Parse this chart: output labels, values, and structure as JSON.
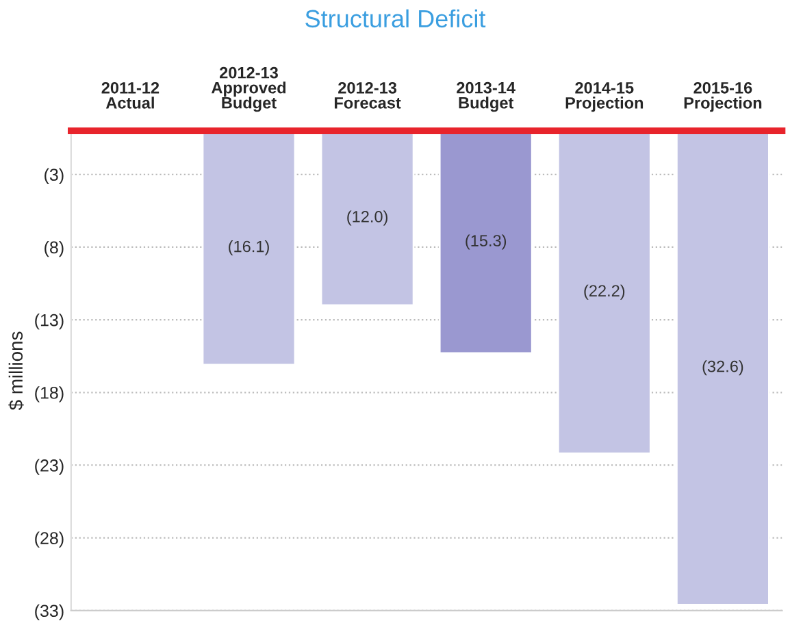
{
  "chart_data": {
    "type": "bar",
    "title": "Structural Deficit",
    "ylabel": "$ millions",
    "categories": [
      "2011-12\nActual",
      "2012-13\nApproved\nBudget",
      "2012-13\nForecast",
      "2013-14\nBudget",
      "2014-15\nProjection",
      "2015-16\nProjection"
    ],
    "values": [
      null,
      -16.1,
      -12.0,
      -15.3,
      -22.2,
      -32.6
    ],
    "colors": [
      "#c3c4e4",
      "#c3c4e4",
      "#c3c4e4",
      "#9a98d0",
      "#c3c4e4",
      "#c3c4e4"
    ],
    "value_labels": [
      null,
      "(16.1)",
      "(12.0)",
      "(15.3)",
      "(22.2)",
      "(32.6)"
    ],
    "ylim": [
      -33,
      0
    ],
    "yticks": [
      {
        "value": -3,
        "label": "(3)"
      },
      {
        "value": -8,
        "label": "(8)"
      },
      {
        "value": -13,
        "label": "(13)"
      },
      {
        "value": -18,
        "label": "(18)"
      },
      {
        "value": -23,
        "label": "(23)"
      },
      {
        "value": -28,
        "label": "(28)"
      },
      {
        "value": -33,
        "label": "(33)"
      }
    ],
    "grid": "y"
  }
}
